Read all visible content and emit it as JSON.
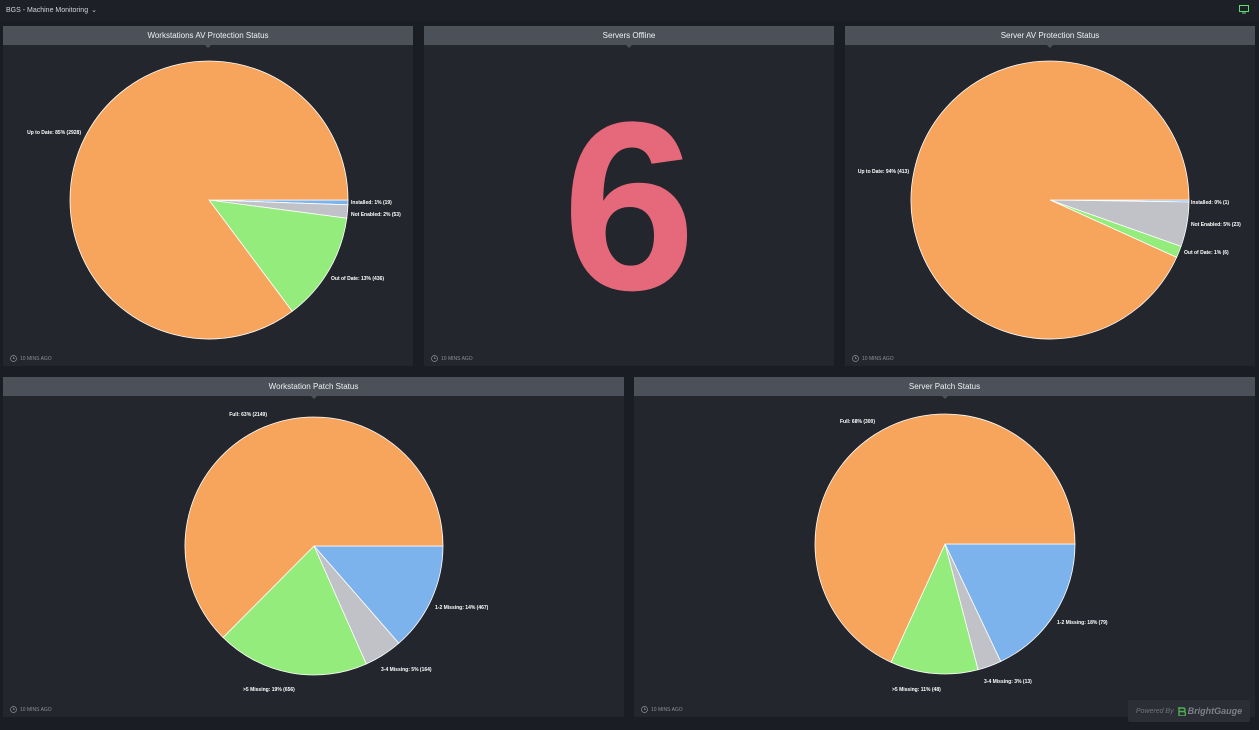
{
  "app": {
    "dashboard_title": "BGS - Machine Monitoring"
  },
  "colors": {
    "orange": "#f7a45c",
    "green": "#94ec7c",
    "gray": "#c1c2c7",
    "blue": "#7db3ec",
    "pink": "#e5697b",
    "monitor_icon": "#5de06a"
  },
  "widgets": [
    {
      "title": "Workstations AV Protection Status",
      "updated": "10 MINS AGO",
      "chart_data": {
        "type": "pie",
        "slices": [
          {
            "label": "Installed: 1% (19)",
            "value": 19,
            "color": "#7db3ec"
          },
          {
            "label": "Not Enabled: 2% (53)",
            "value": 53,
            "color": "#c1c2c7"
          },
          {
            "label": "Out of Date: 13% (436)",
            "value": 436,
            "color": "#94ec7c"
          },
          {
            "label": "Up to Date: 85% (2928)",
            "value": 2928,
            "color": "#f7a45c"
          }
        ]
      }
    },
    {
      "title": "Servers Offline",
      "updated": "10 MINS AGO",
      "value": "6"
    },
    {
      "title": "Server AV Protection Status",
      "updated": "10 MINS AGO",
      "chart_data": {
        "type": "pie",
        "slices": [
          {
            "label": "Installed: 0% (1)",
            "value": 1,
            "color": "#7db3ec"
          },
          {
            "label": "Not Enabled: 5% (23)",
            "value": 23,
            "color": "#c1c2c7"
          },
          {
            "label": "Out of Date: 1% (6)",
            "value": 6,
            "color": "#94ec7c"
          },
          {
            "label": "Up to Date: 94% (413)",
            "value": 413,
            "color": "#f7a45c"
          }
        ]
      }
    },
    {
      "title": "Workstation Patch Status",
      "updated": "10 MINS AGO",
      "chart_data": {
        "type": "pie",
        "slices": [
          {
            "label": "1-2 Missing: 14% (467)",
            "value": 467,
            "color": "#7db3ec"
          },
          {
            "label": "3-4 Missing: 5% (164)",
            "value": 164,
            "color": "#c1c2c7"
          },
          {
            "label": ">5 Missing: 19% (656)",
            "value": 656,
            "color": "#94ec7c"
          },
          {
            "label": "Full: 63% (2149)",
            "value": 2149,
            "color": "#f7a45c"
          }
        ]
      }
    },
    {
      "title": "Server Patch Status",
      "updated": "10 MINS AGO",
      "chart_data": {
        "type": "pie",
        "slices": [
          {
            "label": "1-2 Missing: 18% (79)",
            "value": 79,
            "color": "#7db3ec"
          },
          {
            "label": "3-4 Missing: 3% (13)",
            "value": 13,
            "color": "#c1c2c7"
          },
          {
            "label": ">5 Missing: 11% (48)",
            "value": 48,
            "color": "#94ec7c"
          },
          {
            "label": "Full: 68% (300)",
            "value": 300,
            "color": "#f7a45c"
          }
        ]
      }
    }
  ],
  "footer": {
    "powered_label": "Powered By",
    "brand": "BrightGauge"
  }
}
